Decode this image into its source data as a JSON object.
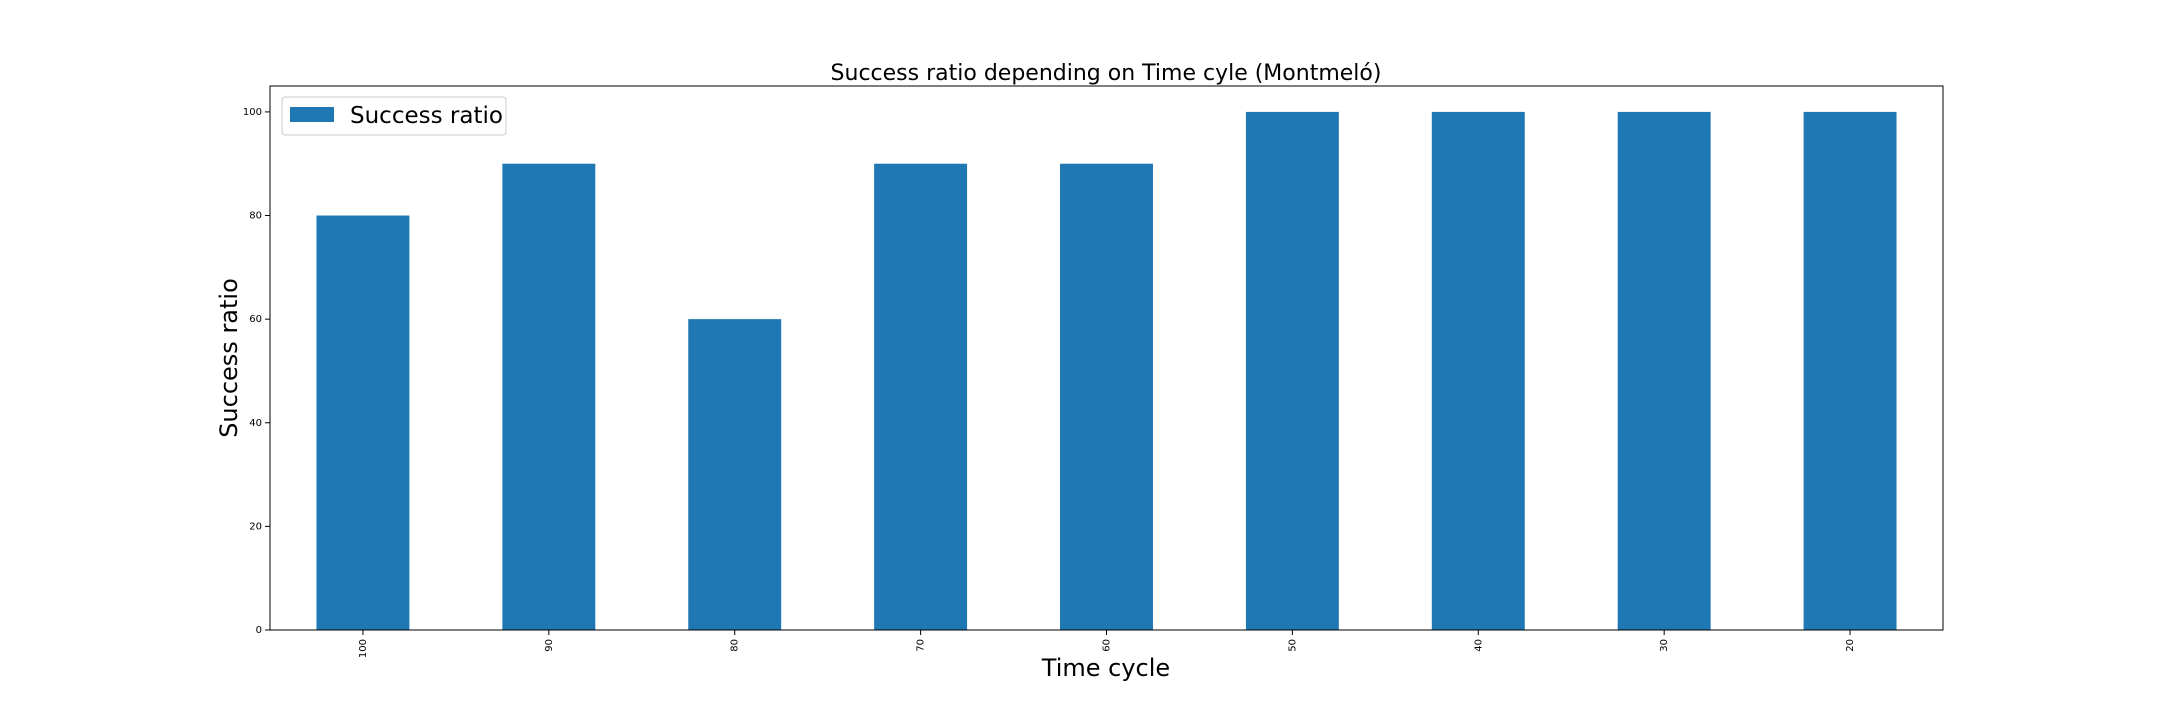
{
  "chart_data": {
    "type": "bar",
    "title": "Success ratio depending on Time cyle (Montmeló)",
    "xlabel": "Time cycle",
    "ylabel": "Success ratio",
    "categories": [
      "100",
      "90",
      "80",
      "70",
      "60",
      "50",
      "40",
      "30",
      "20"
    ],
    "series": [
      {
        "name": "Success ratio",
        "values": [
          80,
          90,
          60,
          90,
          90,
          100,
          100,
          100,
          100
        ],
        "color": "#1f77b4"
      }
    ],
    "ylim": [
      0,
      105
    ],
    "yticks": [
      0,
      20,
      40,
      60,
      80,
      100
    ],
    "grid": false,
    "legend_position": "top-left"
  }
}
